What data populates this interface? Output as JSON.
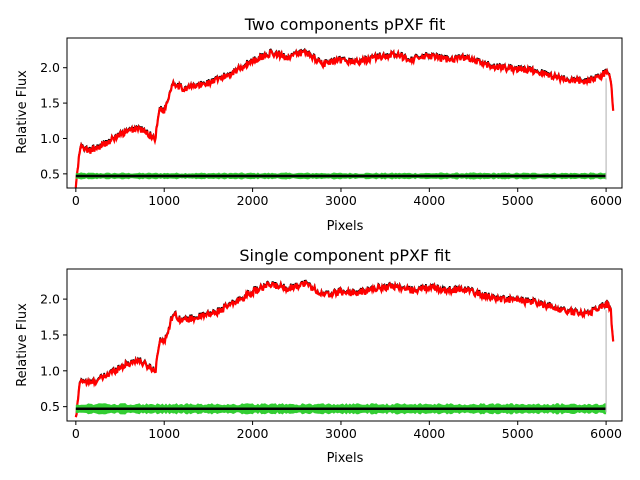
{
  "chart_data": [
    {
      "type": "line",
      "title": "Two components pPXF fit",
      "xlabel": "Pixels",
      "ylabel": "Relative Flux",
      "xlim": [
        -100,
        6180
      ],
      "ylim": [
        0.3,
        2.42
      ],
      "xticks": [
        0,
        1000,
        2000,
        3000,
        4000,
        5000,
        6000
      ],
      "yticks": [
        0.5,
        1.0,
        1.5,
        2.0
      ],
      "grid": false,
      "series": [
        {
          "role": "data",
          "color": "#000000",
          "x": [
            0,
            50,
            150,
            300,
            500,
            700,
            900,
            950,
            1000,
            1100,
            1200,
            1400,
            1600,
            1800,
            2000,
            2200,
            2400,
            2600,
            2800,
            3000,
            3200,
            3400,
            3600,
            3800,
            4000,
            4200,
            4400,
            4600,
            4800,
            5000,
            5200,
            5400,
            5600,
            5800,
            6000,
            6050,
            6080
          ],
          "y": [
            0.32,
            0.88,
            0.82,
            0.9,
            1.05,
            1.15,
            1.0,
            1.45,
            1.38,
            1.8,
            1.7,
            1.75,
            1.82,
            1.95,
            2.1,
            2.2,
            2.15,
            2.22,
            2.05,
            2.1,
            2.08,
            2.15,
            2.18,
            2.12,
            2.16,
            2.12,
            2.14,
            2.05,
            2.0,
            1.98,
            1.95,
            1.88,
            1.82,
            1.8,
            1.93,
            1.88,
            1.4
          ]
        },
        {
          "role": "best-fit",
          "color": "#ff0000",
          "x": [
            0,
            50,
            150,
            300,
            500,
            700,
            900,
            950,
            1000,
            1100,
            1200,
            1400,
            1600,
            1800,
            2000,
            2200,
            2400,
            2600,
            2800,
            3000,
            3200,
            3400,
            3600,
            3800,
            4000,
            4200,
            4400,
            4600,
            4800,
            5000,
            5200,
            5400,
            5600,
            5800,
            6000,
            6050,
            6080
          ],
          "y": [
            0.32,
            0.88,
            0.82,
            0.9,
            1.05,
            1.15,
            1.0,
            1.45,
            1.38,
            1.8,
            1.7,
            1.75,
            1.82,
            1.95,
            2.1,
            2.2,
            2.15,
            2.22,
            2.05,
            2.1,
            2.08,
            2.15,
            2.18,
            2.12,
            2.16,
            2.12,
            2.14,
            2.05,
            2.0,
            1.98,
            1.95,
            1.88,
            1.82,
            1.8,
            1.93,
            1.88,
            1.4
          ]
        },
        {
          "role": "residuals",
          "color": "#32cd32",
          "x": [
            0,
            6000
          ],
          "y": [
            0.47,
            0.47
          ],
          "spread": 0.05
        },
        {
          "role": "zero-level",
          "color": "#000000",
          "x": [
            0,
            6000
          ],
          "y": [
            0.47,
            0.47
          ]
        }
      ]
    },
    {
      "type": "line",
      "title": "Single component pPXF fit",
      "xlabel": "Pixels",
      "ylabel": "Relative Flux",
      "xlim": [
        -100,
        6180
      ],
      "ylim": [
        0.3,
        2.42
      ],
      "xticks": [
        0,
        1000,
        2000,
        3000,
        4000,
        5000,
        6000
      ],
      "yticks": [
        0.5,
        1.0,
        1.5,
        2.0
      ],
      "grid": false,
      "series": [
        {
          "role": "data",
          "color": "#000000",
          "x": [
            0,
            50,
            150,
            300,
            500,
            700,
            900,
            950,
            1000,
            1100,
            1200,
            1400,
            1600,
            1800,
            2000,
            2200,
            2400,
            2600,
            2800,
            3000,
            3200,
            3400,
            3600,
            3800,
            4000,
            4200,
            4400,
            4600,
            4800,
            5000,
            5200,
            5400,
            5600,
            5800,
            6000,
            6050,
            6080
          ],
          "y": [
            0.32,
            0.88,
            0.82,
            0.9,
            1.05,
            1.15,
            1.0,
            1.45,
            1.38,
            1.8,
            1.7,
            1.75,
            1.82,
            1.95,
            2.1,
            2.2,
            2.15,
            2.22,
            2.05,
            2.1,
            2.08,
            2.15,
            2.18,
            2.12,
            2.16,
            2.12,
            2.14,
            2.05,
            2.0,
            1.98,
            1.95,
            1.88,
            1.82,
            1.8,
            1.93,
            1.88,
            1.4
          ]
        },
        {
          "role": "best-fit",
          "color": "#ff0000",
          "x": [
            0,
            50,
            150,
            300,
            500,
            700,
            900,
            950,
            1000,
            1100,
            1200,
            1400,
            1600,
            1800,
            2000,
            2200,
            2400,
            2600,
            2800,
            3000,
            3200,
            3400,
            3600,
            3800,
            4000,
            4200,
            4400,
            4600,
            4800,
            5000,
            5200,
            5400,
            5600,
            5800,
            6000,
            6050,
            6080
          ],
          "y": [
            0.32,
            0.88,
            0.82,
            0.9,
            1.05,
            1.15,
            1.0,
            1.45,
            1.38,
            1.8,
            1.7,
            1.75,
            1.82,
            1.95,
            2.1,
            2.2,
            2.15,
            2.22,
            2.05,
            2.1,
            2.08,
            2.15,
            2.18,
            2.12,
            2.16,
            2.12,
            2.14,
            2.05,
            2.0,
            1.98,
            1.95,
            1.88,
            1.82,
            1.8,
            1.93,
            1.88,
            1.4
          ]
        },
        {
          "role": "residuals",
          "color": "#32cd32",
          "x": [
            0,
            6000
          ],
          "y": [
            0.47,
            0.47
          ],
          "spread": 0.08
        },
        {
          "role": "zero-level",
          "color": "#000000",
          "x": [
            0,
            6000
          ],
          "y": [
            0.47,
            0.47
          ]
        }
      ]
    }
  ]
}
